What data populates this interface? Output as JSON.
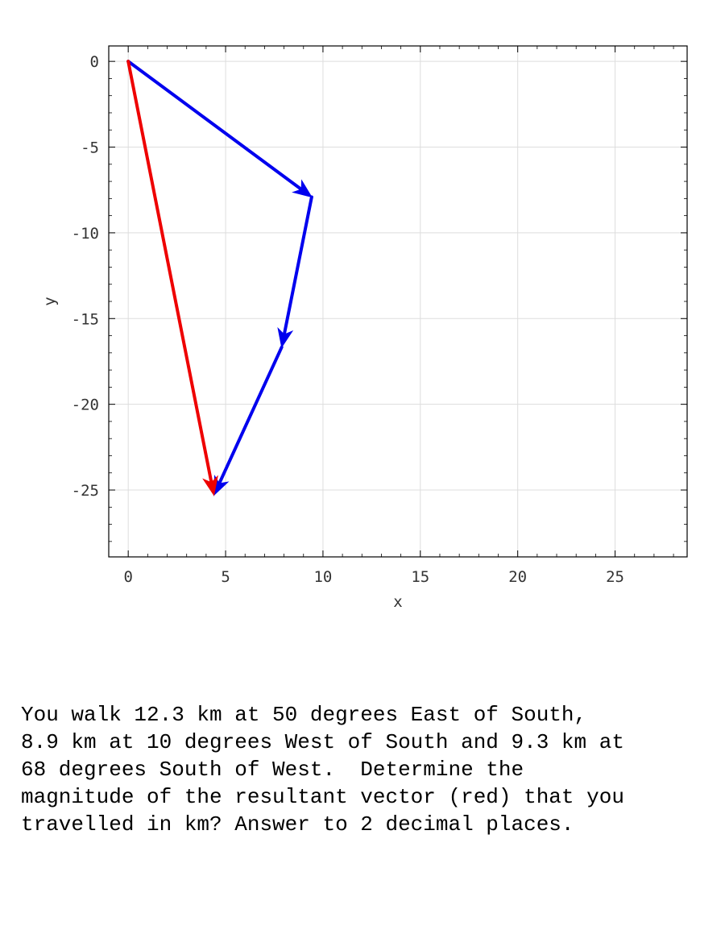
{
  "chart_data": {
    "type": "vector-diagram",
    "xlabel": "x",
    "ylabel": "y",
    "xlim": [
      -1,
      28.7
    ],
    "ylim": [
      -28.9,
      0.9
    ],
    "xticks": [
      0,
      5,
      10,
      15,
      20,
      25
    ],
    "yticks": [
      0,
      -5,
      -10,
      -15,
      -20,
      -25
    ],
    "grid": true,
    "vectors": [
      {
        "name": "12.3 km at 50 degrees East of South",
        "color": "#0000ee",
        "from": [
          0,
          0
        ],
        "to": [
          9.42,
          -7.91
        ]
      },
      {
        "name": "8.9 km at 10 degrees West of South",
        "color": "#0000ee",
        "from": [
          9.42,
          -7.91
        ],
        "to": [
          7.88,
          -16.67
        ]
      },
      {
        "name": "9.3 km at 68 degrees South of West",
        "color": "#0000ee",
        "from": [
          7.88,
          -16.67
        ],
        "to": [
          4.4,
          -25.3
        ]
      },
      {
        "name": "resultant",
        "color": "#ee0000",
        "from": [
          0,
          0
        ],
        "to": [
          4.4,
          -25.3
        ]
      }
    ]
  },
  "question": {
    "text": "You walk 12.3 km at 50 degrees East of South,\n8.9 km at 10 degrees West of South and 9.3 km at\n68 degrees South of West.  Determine the\nmagnitude of the resultant vector (red) that you\ntravelled in km? Answer to 2 decimal places."
  }
}
